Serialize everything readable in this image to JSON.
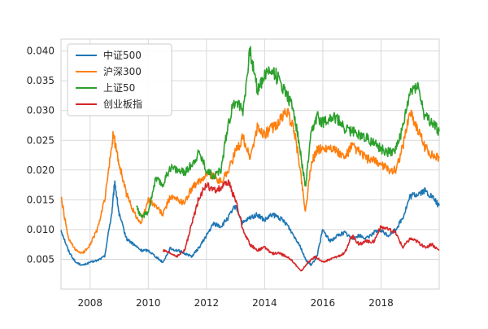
{
  "chart_data": {
    "type": "line",
    "title": "",
    "xlabel": "",
    "ylabel": "",
    "xlim": [
      2007.0,
      2020.0
    ],
    "ylim": [
      0.0,
      0.042
    ],
    "grid": true,
    "legend_position": "top-left",
    "x_ticks": [
      {
        "value": 2008,
        "label": "2008"
      },
      {
        "value": 2010,
        "label": "2010"
      },
      {
        "value": 2012,
        "label": "2012"
      },
      {
        "value": 2014,
        "label": "2014"
      },
      {
        "value": 2016,
        "label": "2016"
      },
      {
        "value": 2018,
        "label": "2018"
      }
    ],
    "y_ticks": [
      {
        "value": 0.005,
        "label": "0.005"
      },
      {
        "value": 0.01,
        "label": "0.010"
      },
      {
        "value": 0.015,
        "label": "0.015"
      },
      {
        "value": 0.02,
        "label": "0.020"
      },
      {
        "value": 0.025,
        "label": "0.025"
      },
      {
        "value": 0.03,
        "label": "0.030"
      },
      {
        "value": 0.035,
        "label": "0.035"
      },
      {
        "value": 0.04,
        "label": "0.040"
      }
    ],
    "series": [
      {
        "name": "中证500",
        "color": "#1f77b4",
        "x": [
          2007.0,
          2007.25,
          2007.5,
          2007.75,
          2008.0,
          2008.25,
          2008.5,
          2008.75,
          2008.85,
          2009.0,
          2009.25,
          2009.5,
          2009.75,
          2010.0,
          2010.25,
          2010.5,
          2010.75,
          2011.0,
          2011.25,
          2011.5,
          2011.75,
          2012.0,
          2012.25,
          2012.5,
          2012.75,
          2013.0,
          2013.25,
          2013.5,
          2013.75,
          2014.0,
          2014.25,
          2014.5,
          2014.75,
          2015.0,
          2015.2,
          2015.4,
          2015.6,
          2015.8,
          2016.0,
          2016.25,
          2016.5,
          2016.75,
          2017.0,
          2017.25,
          2017.5,
          2017.75,
          2018.0,
          2018.25,
          2018.5,
          2018.75,
          2019.0,
          2019.25,
          2019.5,
          2019.75,
          2020.0
        ],
        "y": [
          0.01,
          0.0065,
          0.0045,
          0.004,
          0.0045,
          0.0048,
          0.0055,
          0.013,
          0.018,
          0.0125,
          0.0085,
          0.0075,
          0.0065,
          0.0065,
          0.0055,
          0.0045,
          0.0068,
          0.0065,
          0.006,
          0.0055,
          0.007,
          0.009,
          0.011,
          0.0105,
          0.012,
          0.014,
          0.011,
          0.012,
          0.0125,
          0.0115,
          0.0125,
          0.012,
          0.011,
          0.009,
          0.0075,
          0.005,
          0.004,
          0.0055,
          0.01,
          0.008,
          0.009,
          0.0095,
          0.0085,
          0.009,
          0.0085,
          0.0095,
          0.0098,
          0.009,
          0.01,
          0.012,
          0.0155,
          0.016,
          0.0165,
          0.0155,
          0.014
        ]
      },
      {
        "name": "沪深300",
        "color": "#ff7f0e",
        "x": [
          2007.0,
          2007.25,
          2007.5,
          2007.75,
          2008.0,
          2008.25,
          2008.5,
          2008.75,
          2008.8,
          2009.0,
          2009.25,
          2009.5,
          2009.75,
          2010.0,
          2010.25,
          2010.5,
          2010.75,
          2011.0,
          2011.25,
          2011.5,
          2011.75,
          2012.0,
          2012.25,
          2012.5,
          2012.75,
          2013.0,
          2013.25,
          2013.5,
          2013.75,
          2014.0,
          2014.25,
          2014.5,
          2014.75,
          2015.0,
          2015.2,
          2015.4,
          2015.6,
          2015.8,
          2016.0,
          2016.25,
          2016.5,
          2016.75,
          2017.0,
          2017.25,
          2017.5,
          2017.75,
          2018.0,
          2018.25,
          2018.5,
          2018.75,
          2019.0,
          2019.25,
          2019.5,
          2019.75,
          2020.0
        ],
        "y": [
          0.0155,
          0.0085,
          0.0065,
          0.006,
          0.0075,
          0.01,
          0.015,
          0.024,
          0.026,
          0.021,
          0.016,
          0.013,
          0.011,
          0.015,
          0.014,
          0.0125,
          0.0155,
          0.015,
          0.0145,
          0.017,
          0.018,
          0.0195,
          0.019,
          0.018,
          0.02,
          0.023,
          0.0255,
          0.022,
          0.027,
          0.026,
          0.027,
          0.028,
          0.03,
          0.027,
          0.021,
          0.013,
          0.021,
          0.0235,
          0.0235,
          0.024,
          0.023,
          0.022,
          0.024,
          0.023,
          0.022,
          0.0215,
          0.021,
          0.02,
          0.02,
          0.024,
          0.03,
          0.027,
          0.024,
          0.0225,
          0.022
        ]
      },
      {
        "name": "上证50",
        "color": "#2ca02c",
        "x": [
          2009.6,
          2009.75,
          2010.0,
          2010.25,
          2010.5,
          2010.75,
          2011.0,
          2011.25,
          2011.5,
          2011.75,
          2012.0,
          2012.25,
          2012.5,
          2012.75,
          2013.0,
          2013.25,
          2013.5,
          2013.75,
          2014.0,
          2014.25,
          2014.5,
          2014.75,
          2015.0,
          2015.2,
          2015.4,
          2015.6,
          2015.8,
          2016.0,
          2016.25,
          2016.5,
          2016.75,
          2017.0,
          2017.25,
          2017.5,
          2017.75,
          2018.0,
          2018.25,
          2018.5,
          2018.75,
          2019.0,
          2019.25,
          2019.5,
          2019.75,
          2020.0
        ],
        "y": [
          0.014,
          0.012,
          0.013,
          0.0185,
          0.0175,
          0.0205,
          0.02,
          0.0195,
          0.021,
          0.023,
          0.02,
          0.019,
          0.02,
          0.028,
          0.032,
          0.03,
          0.04,
          0.0335,
          0.036,
          0.037,
          0.035,
          0.033,
          0.03,
          0.024,
          0.017,
          0.026,
          0.029,
          0.028,
          0.029,
          0.0285,
          0.027,
          0.0265,
          0.026,
          0.0255,
          0.0245,
          0.0235,
          0.023,
          0.0235,
          0.027,
          0.033,
          0.0345,
          0.029,
          0.028,
          0.0265
        ]
      },
      {
        "name": "创业板指",
        "color": "#d62728",
        "x": [
          2010.5,
          2010.75,
          2011.0,
          2011.25,
          2011.5,
          2011.75,
          2012.0,
          2012.25,
          2012.5,
          2012.75,
          2013.0,
          2013.25,
          2013.5,
          2013.75,
          2014.0,
          2014.25,
          2014.5,
          2014.75,
          2015.0,
          2015.25,
          2015.5,
          2015.75,
          2016.0,
          2016.25,
          2016.5,
          2016.75,
          2017.0,
          2017.25,
          2017.5,
          2017.75,
          2018.0,
          2018.25,
          2018.5,
          2018.75,
          2019.0,
          2019.25,
          2019.5,
          2019.75,
          2020.0
        ],
        "y": [
          0.0065,
          0.006,
          0.0055,
          0.0065,
          0.011,
          0.0155,
          0.0175,
          0.0165,
          0.017,
          0.018,
          0.015,
          0.01,
          0.0075,
          0.0065,
          0.007,
          0.006,
          0.006,
          0.0055,
          0.0045,
          0.003,
          0.0045,
          0.0055,
          0.0045,
          0.005,
          0.0055,
          0.006,
          0.009,
          0.0075,
          0.008,
          0.008,
          0.0105,
          0.01,
          0.0095,
          0.007,
          0.0085,
          0.008,
          0.007,
          0.0075,
          0.0065
        ]
      }
    ]
  }
}
